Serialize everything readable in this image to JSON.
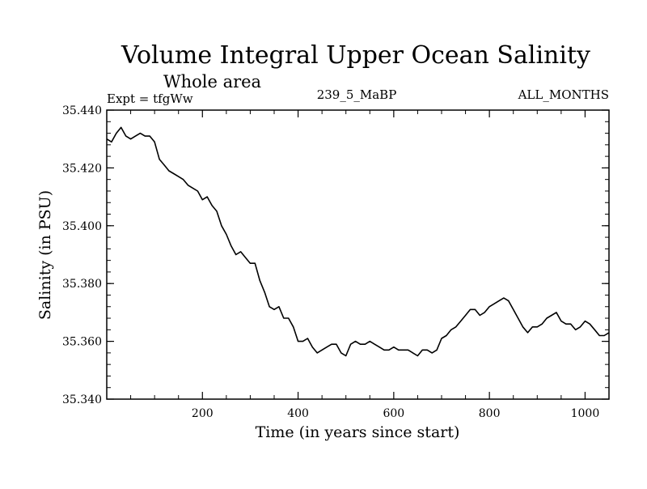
{
  "chart_data": {
    "type": "line",
    "title": "Volume Integral Upper Ocean Salinity",
    "subtitle": "Whole area",
    "left_label": "Expt = tfgWw",
    "center_label": "239_5_MaBP",
    "right_label": "ALL_MONTHS",
    "xlabel": "Time (in years since start)",
    "ylabel": "Salinity (in PSU)",
    "xlim": [
      0,
      1050
    ],
    "ylim": [
      35.34,
      35.44
    ],
    "x_ticks": [
      200,
      400,
      600,
      800,
      1000
    ],
    "x_tick_labels": [
      "200",
      "400",
      "600",
      "800",
      "1000"
    ],
    "y_ticks": [
      35.34,
      35.36,
      35.38,
      35.4,
      35.42,
      35.44
    ],
    "y_tick_labels": [
      "35.340",
      "35.360",
      "35.380",
      "35.400",
      "35.420",
      "35.440"
    ],
    "grid": false,
    "series": [
      {
        "name": "Salinity",
        "x": [
          0,
          10,
          20,
          30,
          40,
          50,
          60,
          70,
          80,
          90,
          100,
          110,
          120,
          130,
          140,
          150,
          160,
          170,
          180,
          190,
          200,
          210,
          220,
          230,
          240,
          250,
          260,
          270,
          280,
          290,
          300,
          310,
          320,
          330,
          340,
          350,
          360,
          370,
          380,
          390,
          400,
          410,
          420,
          430,
          440,
          450,
          460,
          470,
          480,
          490,
          500,
          510,
          520,
          530,
          540,
          550,
          560,
          570,
          580,
          590,
          600,
          610,
          620,
          630,
          640,
          650,
          660,
          670,
          680,
          690,
          700,
          710,
          720,
          730,
          740,
          750,
          760,
          770,
          780,
          790,
          800,
          810,
          820,
          830,
          840,
          850,
          860,
          870,
          880,
          890,
          900,
          910,
          920,
          930,
          940,
          950,
          960,
          970,
          980,
          990,
          1000,
          1010,
          1020,
          1030,
          1040,
          1050
        ],
        "values": [
          35.43,
          35.429,
          35.432,
          35.434,
          35.431,
          35.43,
          35.431,
          35.432,
          35.431,
          35.431,
          35.429,
          35.423,
          35.421,
          35.419,
          35.418,
          35.417,
          35.416,
          35.414,
          35.413,
          35.412,
          35.409,
          35.41,
          35.407,
          35.405,
          35.4,
          35.397,
          35.393,
          35.39,
          35.391,
          35.389,
          35.387,
          35.387,
          35.381,
          35.377,
          35.372,
          35.371,
          35.372,
          35.368,
          35.368,
          35.365,
          35.36,
          35.36,
          35.361,
          35.358,
          35.356,
          35.357,
          35.358,
          35.359,
          35.359,
          35.356,
          35.355,
          35.359,
          35.36,
          35.359,
          35.359,
          35.36,
          35.359,
          35.358,
          35.357,
          35.357,
          35.358,
          35.357,
          35.357,
          35.357,
          35.356,
          35.355,
          35.357,
          35.357,
          35.356,
          35.357,
          35.361,
          35.362,
          35.364,
          35.365,
          35.367,
          35.369,
          35.371,
          35.371,
          35.369,
          35.37,
          35.372,
          35.373,
          35.374,
          35.375,
          35.374,
          35.371,
          35.368,
          35.365,
          35.363,
          35.365,
          35.365,
          35.366,
          35.368,
          35.369,
          35.37,
          35.367,
          35.366,
          35.366,
          35.364,
          35.365,
          35.367,
          35.366,
          35.364,
          35.362,
          35.362,
          35.363
        ]
      }
    ]
  }
}
